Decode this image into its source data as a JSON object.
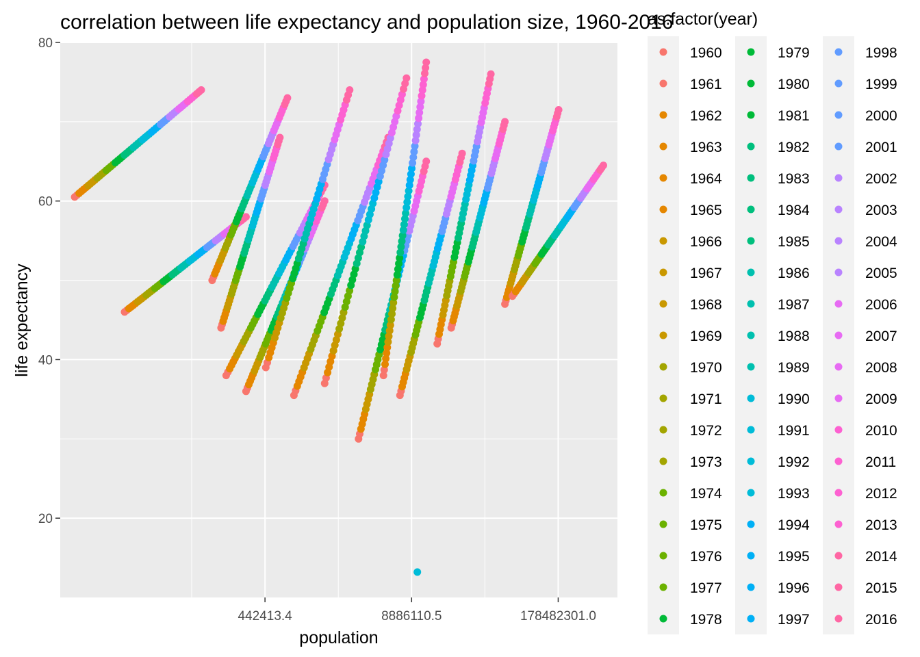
{
  "chart_data": {
    "type": "scatter",
    "title": "correlation between life expectancy and population size, 1960-2016",
    "xlabel": "population",
    "ylabel": "life expectancy",
    "x_scale": "log10",
    "xlim": [
      6700,
      600000000
    ],
    "ylim": [
      10,
      80
    ],
    "x_ticks": [
      442413.4,
      8886110.5,
      178482301.0
    ],
    "x_tick_labels": [
      "442413.4",
      "8886110.5",
      "178482301.0"
    ],
    "y_ticks": [
      20,
      40,
      60,
      80
    ],
    "y_tick_labels": [
      "20",
      "40",
      "60",
      "80"
    ],
    "grid": true,
    "legend": {
      "title": "as.factor(year)",
      "position": "right",
      "columns": 3,
      "entries": [
        "1960",
        "1961",
        "1962",
        "1963",
        "1964",
        "1965",
        "1966",
        "1967",
        "1968",
        "1969",
        "1970",
        "1971",
        "1972",
        "1973",
        "1974",
        "1975",
        "1976",
        "1977",
        "1978",
        "1979",
        "1980",
        "1981",
        "1982",
        "1983",
        "1984",
        "1985",
        "1986",
        "1987",
        "1988",
        "1989",
        "1990",
        "1991",
        "1992",
        "1993",
        "1994",
        "1995",
        "1996",
        "1997",
        "1998",
        "1999",
        "2000",
        "2001",
        "2002",
        "2003",
        "2004",
        "2005",
        "2006",
        "2007",
        "2008",
        "2009",
        "2010",
        "2011",
        "2012",
        "2013",
        "2014",
        "2015",
        "2016"
      ]
    },
    "series": [
      {
        "population": [
          9000,
          120000
        ],
        "life_expectancy": [
          60.5,
          74.0
        ]
      },
      {
        "population": [
          25000,
          300000
        ],
        "life_expectancy": [
          46.0,
          58.0
        ]
      },
      {
        "population": [
          150000,
          700000
        ],
        "life_expectancy": [
          50.0,
          73.0
        ]
      },
      {
        "population": [
          180000,
          600000
        ],
        "life_expectancy": [
          44.0,
          68.0
        ]
      },
      {
        "population": [
          200000,
          1500000
        ],
        "life_expectancy": [
          38.0,
          62.0
        ]
      },
      {
        "population": [
          300000,
          1500000
        ],
        "life_expectancy": [
          36.0,
          60.0
        ]
      },
      {
        "population": [
          450000,
          2500000
        ],
        "life_expectancy": [
          39.0,
          74.0
        ]
      },
      {
        "population": [
          800000,
          5500000
        ],
        "life_expectancy": [
          35.5,
          68.0
        ]
      },
      {
        "population": [
          1500000,
          8000000
        ],
        "life_expectancy": [
          37.0,
          75.5
        ]
      },
      {
        "population": [
          3000000,
          12000000
        ],
        "life_expectancy": [
          30.0,
          65.0
        ]
      },
      {
        "population": [
          5000000,
          12000000
        ],
        "life_expectancy": [
          38.0,
          77.5
        ]
      },
      {
        "population": [
          7000000,
          25000000
        ],
        "life_expectancy": [
          35.5,
          66.0
        ]
      },
      {
        "population": [
          15000000,
          45000000
        ],
        "life_expectancy": [
          42.0,
          76.0
        ]
      },
      {
        "population": [
          20000000,
          60000000
        ],
        "life_expectancy": [
          44.0,
          70.0
        ]
      },
      {
        "population": [
          60000000,
          180000000
        ],
        "life_expectancy": [
          47.0,
          71.5
        ]
      },
      {
        "population": [
          70000000,
          450000000
        ],
        "life_expectancy": [
          48.0,
          64.5
        ]
      },
      {
        "population": [
          10000000,
          10000000
        ],
        "life_expectancy": [
          13.2,
          13.2
        ]
      }
    ]
  },
  "palette": [
    "#F8766D",
    "#E58700",
    "#C99800",
    "#A3A500",
    "#6BB100",
    "#00BA38",
    "#00BF7D",
    "#00C0AF",
    "#00BCD8",
    "#00B0F6",
    "#619CFF",
    "#B983FF",
    "#E76BF3",
    "#FD61D1",
    "#FF67A4"
  ]
}
